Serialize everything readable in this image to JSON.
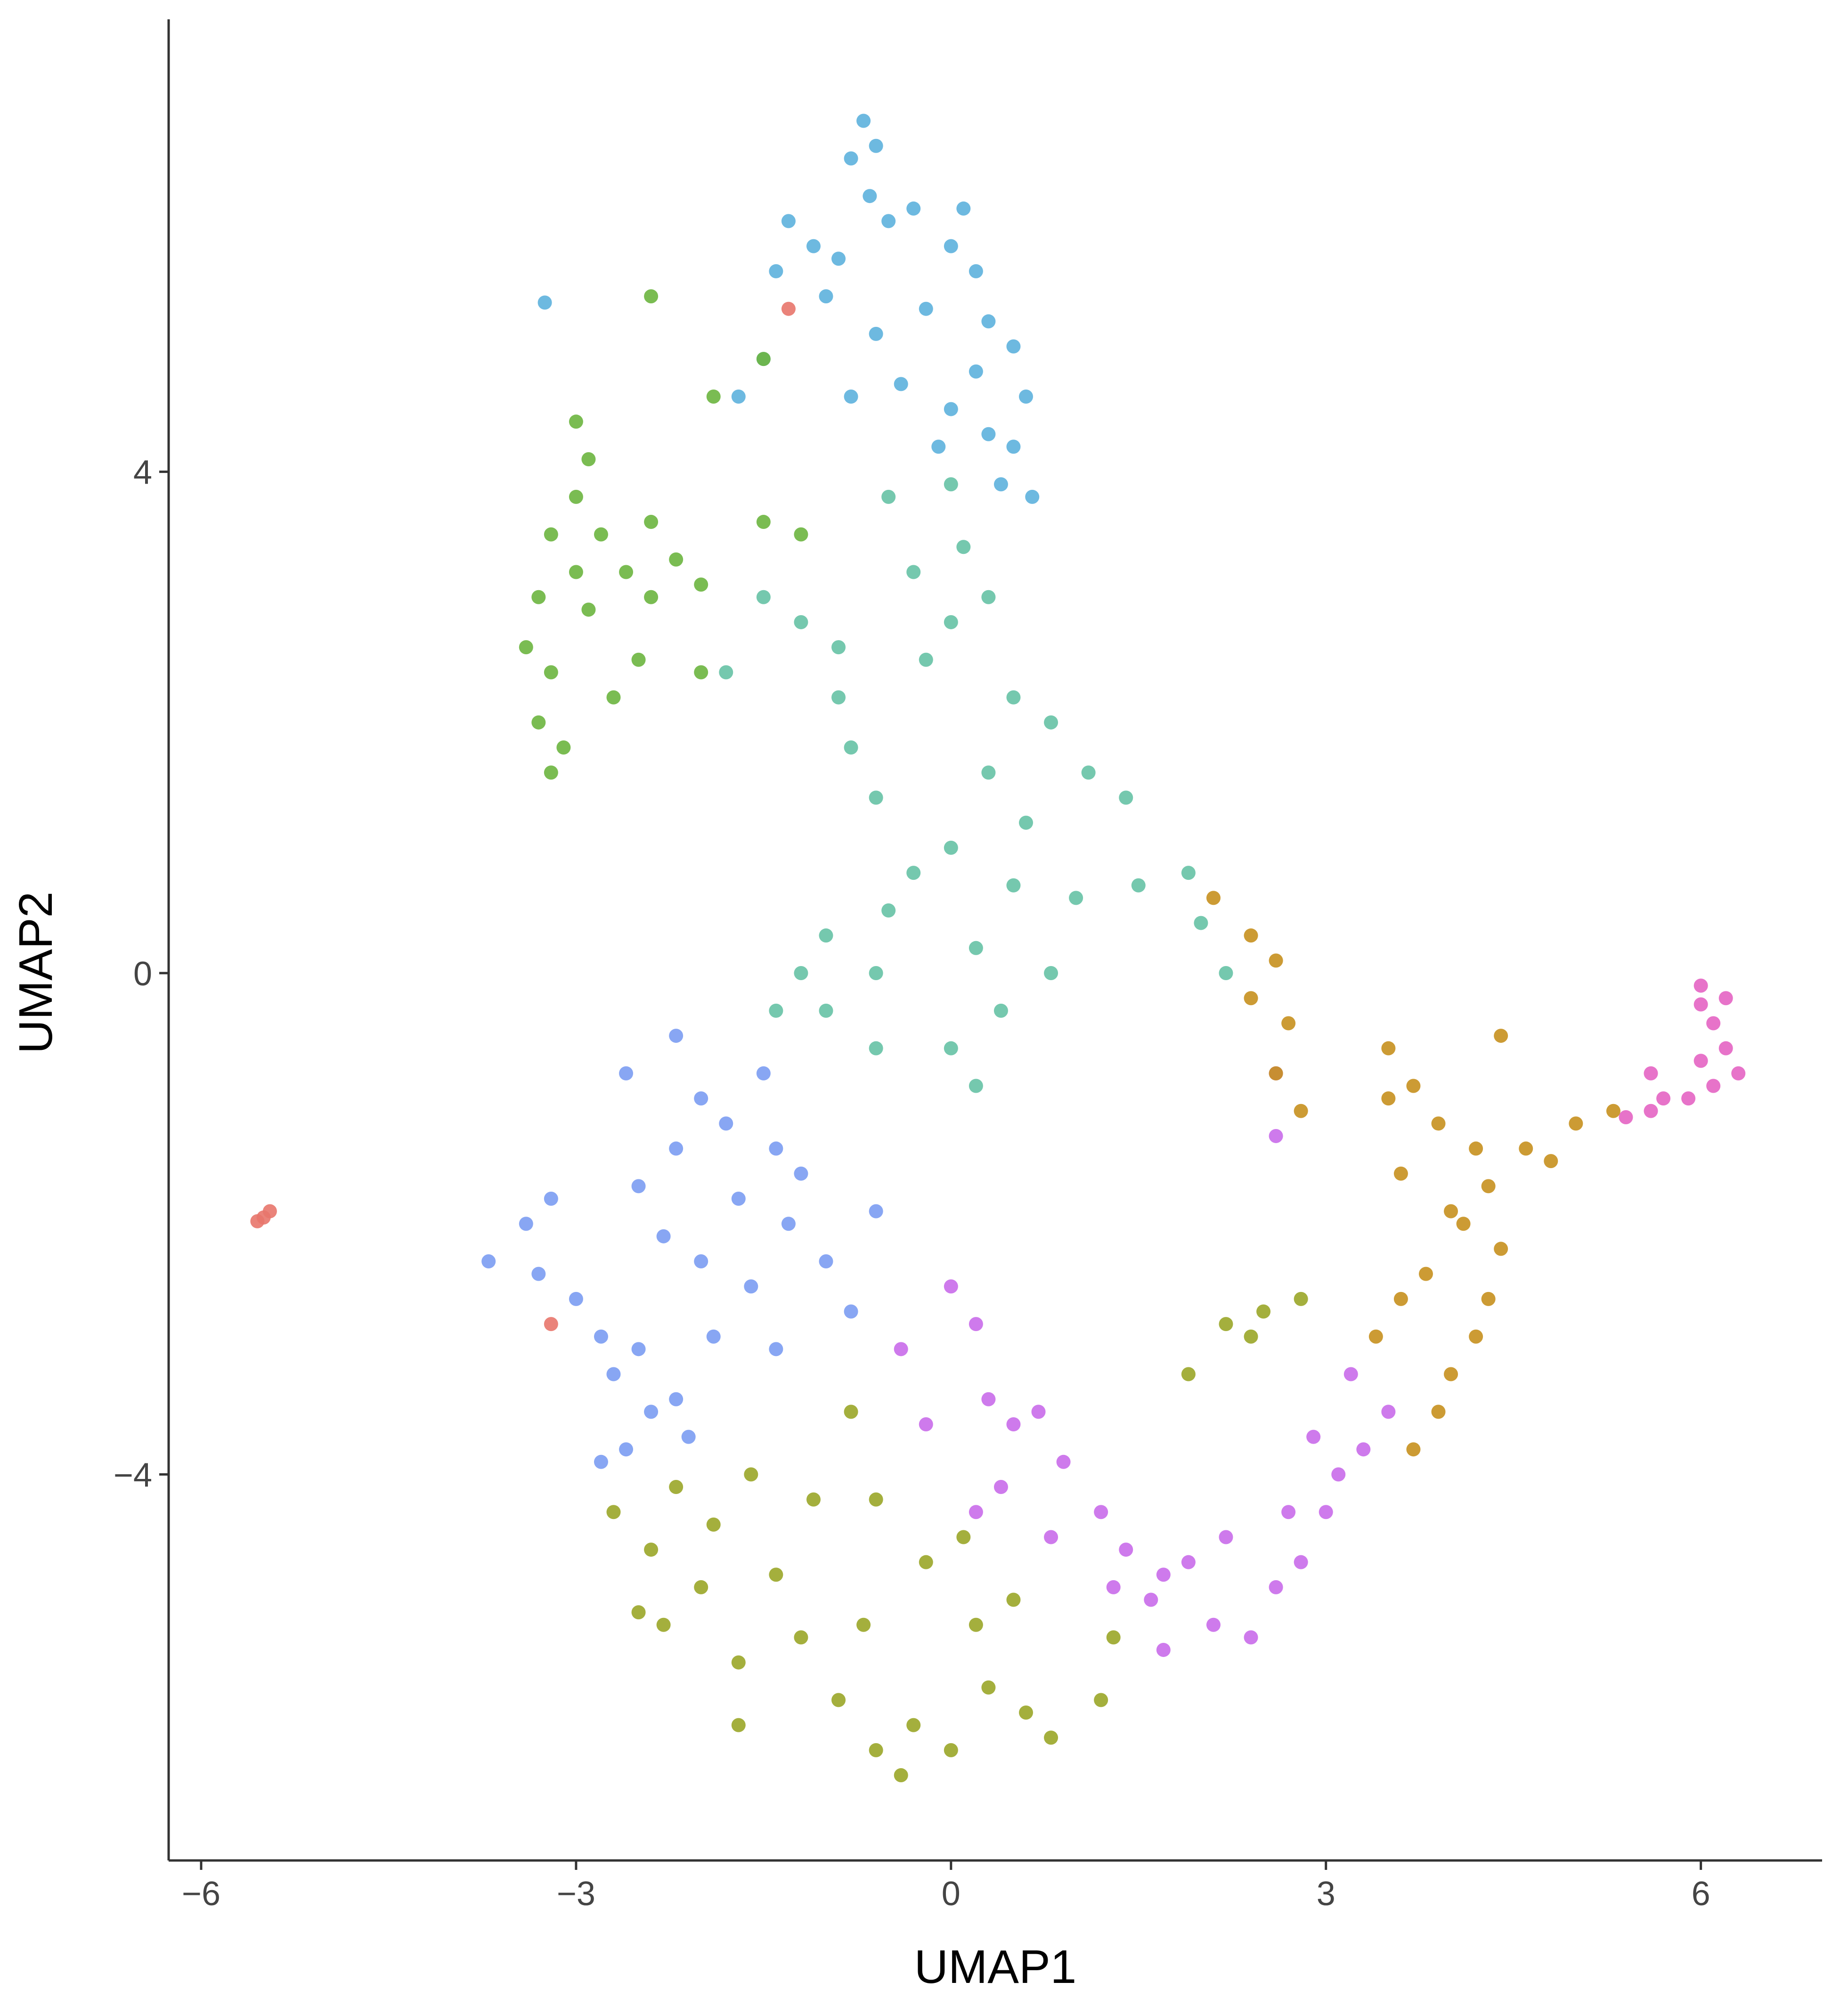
{
  "chart_data": {
    "type": "scatter",
    "x_label": "UMAP1",
    "y_label": "UMAP2",
    "xlim": [
      -6.26,
      6.97
    ],
    "ylim": [
      -7.08,
      7.61
    ],
    "xticks": [
      {
        "value": -6,
        "label": "−6"
      },
      {
        "value": -3,
        "label": "−3"
      },
      0,
      3,
      6
    ],
    "yticks": [
      {
        "value": -4,
        "label": "−4"
      },
      0,
      4
    ],
    "grid": false,
    "series": [
      {
        "color": "#5DB1DD",
        "x": [
          -0.7,
          -0.6,
          -0.8,
          -0.65,
          -0.5,
          -1.3,
          -1.1,
          -1.4,
          -0.9,
          -0.3,
          0,
          0.2,
          0.3,
          0.5,
          0.6,
          0.2,
          -0.2,
          -0.6,
          -1.0,
          -0.4,
          0,
          0.3,
          0.5,
          -0.1,
          -1.5,
          -1.7,
          0.1,
          -0.8,
          0.4,
          -3.25,
          0.65
        ],
        "y": [
          6.8,
          6.6,
          6.5,
          6.2,
          6.0,
          6.0,
          5.8,
          5.6,
          5.7,
          6.1,
          5.8,
          5.6,
          5.2,
          5.0,
          4.6,
          4.8,
          5.3,
          5.1,
          5.4,
          4.7,
          4.5,
          4.3,
          4.2,
          4.2,
          4.9,
          4.6,
          6.1,
          4.6,
          3.9,
          5.35,
          3.8
        ]
      },
      {
        "color": "#66C2A5",
        "x": [
          -0.5,
          0,
          0.1,
          -0.3,
          0,
          0.3,
          -0.2,
          -0.9,
          -1.2,
          -1.8,
          -1.5,
          -0.9,
          -0.8,
          -0.6,
          0.5,
          0.8,
          0.3,
          1.1,
          1.4,
          0.6,
          0,
          -0.3,
          -0.5,
          0.5,
          1.0,
          1.5,
          1.9,
          2.0,
          2.2,
          -1.0,
          -1.2,
          -1.0,
          -0.6,
          0.2,
          0.4,
          0.0,
          0.2,
          -0.6,
          0.8,
          -1.4
        ],
        "y": [
          3.8,
          3.9,
          3.4,
          3.2,
          2.8,
          3.0,
          2.5,
          2.6,
          2.8,
          2.4,
          3.0,
          2.2,
          1.8,
          1.4,
          2.2,
          2.0,
          1.6,
          1.6,
          1.4,
          1.2,
          1.0,
          0.8,
          0.5,
          0.7,
          0.6,
          0.7,
          0.8,
          0.4,
          0.0,
          0.3,
          0,
          -0.3,
          0,
          0.2,
          -0.3,
          -0.6,
          -0.9,
          -0.6,
          0.0,
          -0.3
        ]
      },
      {
        "color": "#6BB53F",
        "x": [
          -2.9,
          -3.0,
          -3.2,
          -3.0,
          -3.3,
          -3.4,
          -3.2,
          -3.3,
          -3.1,
          -3.2,
          -2.8,
          -2.6,
          -2.4,
          -2.2,
          -2.0,
          -2.5,
          -2.7,
          -2.9,
          -2.4,
          -2.0,
          -2.4,
          -1.9,
          -3.0,
          -1.5,
          -1.2,
          -1.5
        ],
        "y": [
          4.1,
          3.8,
          3.5,
          3.2,
          3.0,
          2.6,
          2.4,
          2.0,
          1.8,
          1.6,
          3.5,
          3.2,
          3.0,
          3.3,
          3.1,
          2.5,
          2.2,
          2.9,
          3.6,
          2.4,
          5.4,
          4.6,
          4.4,
          3.6,
          3.5,
          4.9
        ]
      },
      {
        "color": "#7B9CF2",
        "x": [
          -2.2,
          -2.6,
          -2.0,
          -1.8,
          -1.5,
          -2.2,
          -2.5,
          -2.3,
          -2.0,
          -1.7,
          -1.4,
          -1.2,
          -3.2,
          -3.4,
          -3.7,
          -3.3,
          -3.0,
          -2.8,
          -2.7,
          -2.5,
          -2.4,
          -2.6,
          -2.2,
          -1.9,
          -1.6,
          -1.3,
          -1.0,
          -0.6,
          -0.8,
          -1.4,
          -2.8,
          -2.1
        ],
        "y": [
          -0.5,
          -0.8,
          -1.0,
          -1.2,
          -0.8,
          -1.4,
          -1.7,
          -2.1,
          -2.3,
          -1.8,
          -1.4,
          -1.6,
          -1.8,
          -2.0,
          -2.3,
          -2.4,
          -2.6,
          -2.9,
          -3.2,
          -3.0,
          -3.5,
          -3.8,
          -3.4,
          -2.9,
          -2.5,
          -2.0,
          -2.3,
          -1.9,
          -2.7,
          -3.0,
          -3.9,
          -3.7
        ]
      },
      {
        "color": "#9AA628",
        "x": [
          -2.7,
          -2.4,
          -2.2,
          -1.9,
          -1.6,
          -2.0,
          -2.3,
          -1.7,
          -1.4,
          -1.1,
          -0.8,
          -0.6,
          -1.2,
          -0.9,
          -0.6,
          -0.3,
          -0.7,
          -0.2,
          0.1,
          0.2,
          0.3,
          0.6,
          0.8,
          0.5,
          1.2,
          1.3,
          -1.7,
          -2.5,
          -0.4,
          0,
          2.2,
          2.5,
          2.8,
          2.4,
          1.9
        ],
        "y": [
          -4.3,
          -4.6,
          -4.1,
          -4.4,
          -4.0,
          -4.9,
          -5.2,
          -5.5,
          -4.8,
          -4.2,
          -3.5,
          -4.2,
          -5.3,
          -5.8,
          -6.2,
          -6.0,
          -5.2,
          -4.7,
          -4.5,
          -5.2,
          -5.7,
          -5.9,
          -6.1,
          -5.0,
          -5.8,
          -5.3,
          -6.0,
          -5.1,
          -6.4,
          -6.2,
          -2.8,
          -2.7,
          -2.6,
          -2.9,
          -3.2
        ]
      },
      {
        "color": "#C96BEA",
        "x": [
          0,
          0.2,
          -0.4,
          0.3,
          0.5,
          0.7,
          0.9,
          1.2,
          0.4,
          -0.2,
          1.4,
          1.7,
          1.9,
          2.2,
          1.6,
          1.3,
          2.4,
          2.6,
          2.8,
          3.0,
          3.1,
          3.3,
          3.5,
          3.2,
          2.9,
          2.7,
          2.1,
          1.7,
          2.6,
          2.6,
          0.8,
          0.2
        ],
        "y": [
          -2.5,
          -2.8,
          -3.0,
          -3.4,
          -3.6,
          -3.5,
          -3.9,
          -4.3,
          -4.1,
          -3.6,
          -4.6,
          -4.8,
          -4.7,
          -4.5,
          -5.0,
          -4.9,
          -5.3,
          -4.9,
          -4.7,
          -4.3,
          -4.0,
          -3.8,
          -3.5,
          -3.2,
          -3.7,
          -4.3,
          -5.2,
          -5.4,
          -0.8,
          -1.3,
          -4.5,
          -4.3
        ]
      },
      {
        "color": "#C6901E",
        "x": [
          2.1,
          2.4,
          2.6,
          2.4,
          2.7,
          2.6,
          2.8,
          3.5,
          3.7,
          3.9,
          3.5,
          4.2,
          4.3,
          4.0,
          4.4,
          4.6,
          5.0,
          5.3,
          4.8,
          4.3,
          4.2,
          4.0,
          3.9,
          3.7,
          3.6,
          3.4,
          3.8,
          4.1,
          3.6,
          4.4
        ],
        "y": [
          0.6,
          0.3,
          0.1,
          -0.2,
          -0.4,
          -0.8,
          -1.1,
          -0.6,
          -0.9,
          -1.2,
          -1.0,
          -1.4,
          -1.7,
          -1.9,
          -2.2,
          -1.4,
          -1.2,
          -1.1,
          -1.5,
          -2.6,
          -2.9,
          -3.2,
          -3.5,
          -3.8,
          -2.6,
          -2.9,
          -2.4,
          -2.0,
          -1.6,
          -0.5
        ]
      },
      {
        "color": "#E464C3",
        "x": [
          6.0,
          6.2,
          6.1,
          6.2,
          6.3,
          6.1,
          5.9,
          5.7,
          5.6,
          6.0,
          5.6,
          6.0,
          5.4
        ],
        "y": [
          -0.1,
          -0.2,
          -0.4,
          -0.6,
          -0.8,
          -0.9,
          -1.0,
          -1.0,
          -0.8,
          -0.7,
          -1.1,
          -0.25,
          -1.15
        ]
      },
      {
        "color": "#E8766C",
        "x": [
          -5.5,
          -5.45,
          -1.3,
          -3.2,
          -5.55
        ],
        "y": [
          -1.95,
          -1.9,
          5.3,
          -2.8,
          -1.98
        ]
      }
    ]
  }
}
